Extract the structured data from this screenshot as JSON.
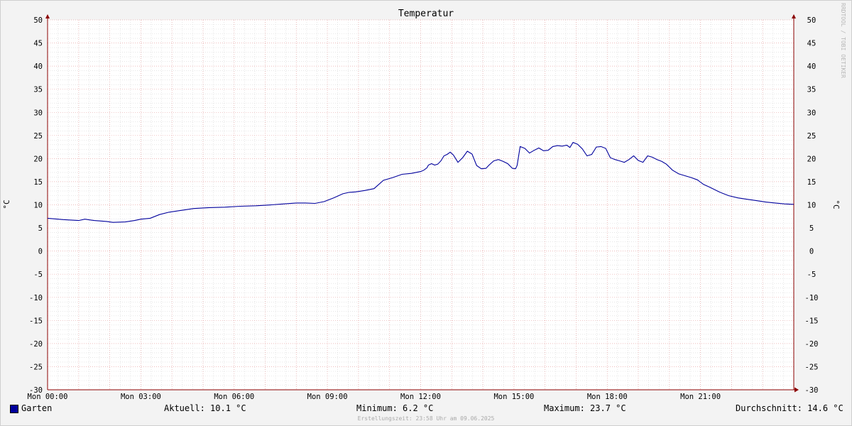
{
  "chart_data": {
    "type": "line",
    "title": "Temperatur",
    "ylabel": "°C",
    "ylabel_right": "°C",
    "ylim": [
      -30,
      50
    ],
    "y_ticks": [
      50,
      45,
      40,
      35,
      30,
      25,
      20,
      15,
      10,
      5,
      0,
      -5,
      -10,
      -15,
      -20,
      -25,
      -30
    ],
    "xlim": [
      0,
      24
    ],
    "x_ticks": [
      {
        "h": 0,
        "label": "Mon 00:00"
      },
      {
        "h": 3,
        "label": "Mon 03:00"
      },
      {
        "h": 6,
        "label": "Mon 06:00"
      },
      {
        "h": 9,
        "label": "Mon 09:00"
      },
      {
        "h": 12,
        "label": "Mon 12:00"
      },
      {
        "h": 15,
        "label": "Mon 15:00"
      },
      {
        "h": 18,
        "label": "Mon 18:00"
      },
      {
        "h": 21,
        "label": "Mon 21:00"
      }
    ],
    "grid": true,
    "series": [
      {
        "name": "Garten",
        "color": "#00009c",
        "x": [
          0,
          0.5,
          1,
          1.2,
          1.5,
          1.9,
          2.1,
          2.5,
          2.8,
          3.0,
          3.3,
          3.6,
          3.9,
          4.3,
          4.7,
          5.2,
          5.7,
          6.2,
          6.7,
          7.2,
          7.6,
          8.0,
          8.3,
          8.6,
          8.9,
          9.2,
          9.5,
          9.7,
          9.9,
          10.2,
          10.5,
          10.8,
          11.1,
          11.4,
          11.7,
          12.0,
          12.1,
          12.2,
          12.25,
          12.35,
          12.45,
          12.55,
          12.65,
          12.75,
          12.85,
          12.95,
          13.05,
          13.2,
          13.35,
          13.5,
          13.65,
          13.8,
          13.95,
          14.1,
          14.2,
          14.35,
          14.5,
          14.65,
          14.8,
          14.95,
          15.05,
          15.1,
          15.2,
          15.35,
          15.5,
          15.65,
          15.8,
          15.95,
          16.1,
          16.25,
          16.4,
          16.55,
          16.7,
          16.8,
          16.9,
          17.05,
          17.2,
          17.35,
          17.5,
          17.65,
          17.8,
          17.95,
          18.1,
          18.25,
          18.4,
          18.55,
          18.7,
          18.85,
          19.0,
          19.15,
          19.3,
          19.45,
          19.6,
          19.75,
          19.9,
          20.1,
          20.3,
          20.5,
          20.7,
          20.9,
          21.1,
          21.3,
          21.6,
          21.9,
          22.2,
          22.5,
          22.8,
          23.1,
          23.4,
          23.7,
          24.0
        ],
        "values": [
          7.1,
          6.8,
          6.6,
          6.9,
          6.6,
          6.4,
          6.2,
          6.3,
          6.6,
          6.9,
          7.1,
          7.9,
          8.4,
          8.8,
          9.2,
          9.4,
          9.5,
          9.7,
          9.8,
          10.0,
          10.2,
          10.4,
          10.4,
          10.3,
          10.7,
          11.5,
          12.4,
          12.7,
          12.8,
          13.1,
          13.5,
          15.3,
          15.9,
          16.6,
          16.8,
          17.2,
          17.5,
          18.0,
          18.6,
          18.9,
          18.6,
          18.8,
          19.5,
          20.6,
          20.9,
          21.4,
          20.8,
          19.2,
          20.2,
          21.6,
          21.0,
          18.5,
          17.8,
          17.9,
          18.6,
          19.5,
          19.8,
          19.4,
          18.9,
          17.9,
          17.8,
          18.5,
          22.6,
          22.2,
          21.2,
          21.8,
          22.3,
          21.7,
          21.8,
          22.6,
          22.8,
          22.7,
          22.9,
          22.4,
          23.5,
          23.1,
          22.1,
          20.6,
          20.9,
          22.5,
          22.6,
          22.2,
          20.2,
          19.8,
          19.5,
          19.2,
          19.8,
          20.6,
          19.6,
          19.2,
          20.6,
          20.3,
          19.8,
          19.4,
          18.8,
          17.5,
          16.7,
          16.3,
          15.9,
          15.4,
          14.4,
          13.8,
          12.8,
          12.0,
          11.5,
          11.2,
          10.9,
          10.6,
          10.4,
          10.2,
          10.1
        ]
      }
    ]
  },
  "legend": {
    "series_name": "Garten",
    "aktuell": "Aktuell: 10.1 °C",
    "minimum": "Minimum: 6.2 °C",
    "maximum": "Maximum: 23.7 °C",
    "durchschnitt": "Durchschnitt: 14.6 °C"
  },
  "footer": "Erstellungszeit: 23:58 Uhr am 09.06.2025",
  "watermark": "RRDTOOL / TOBI OETIKER",
  "colors": {
    "series": "#00009c",
    "grid_major": "#e8a6a6",
    "grid_minor": "#d6d6d6",
    "axis": "#8c0000",
    "plot_bg": "#ffffff",
    "page_bg": "#f3f3f3"
  }
}
